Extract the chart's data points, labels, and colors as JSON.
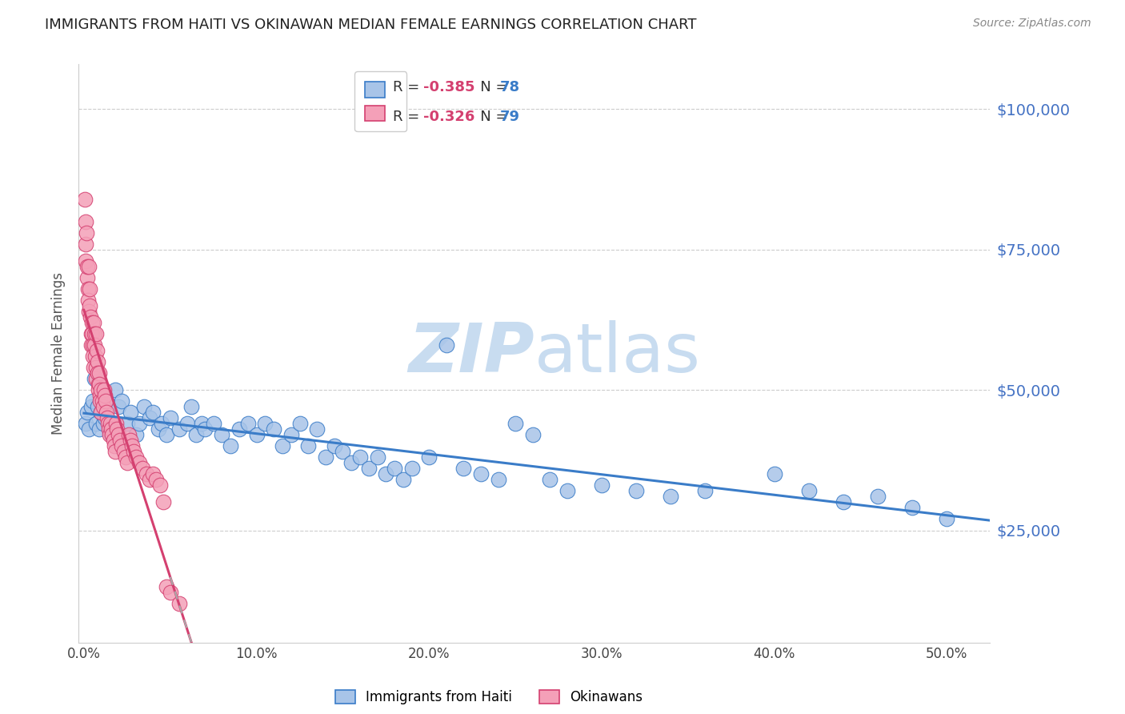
{
  "title": "IMMIGRANTS FROM HAITI VS OKINAWAN MEDIAN FEMALE EARNINGS CORRELATION CHART",
  "source": "Source: ZipAtlas.com",
  "ylabel": "Median Female Earnings",
  "xlabel_ticks": [
    "0.0%",
    "10.0%",
    "20.0%",
    "30.0%",
    "40.0%",
    "50.0%"
  ],
  "xlabel_vals": [
    0.0,
    0.1,
    0.2,
    0.3,
    0.4,
    0.5
  ],
  "ytick_labels": [
    "$25,000",
    "$50,000",
    "$75,000",
    "$100,000"
  ],
  "ytick_vals": [
    25000,
    50000,
    75000,
    100000
  ],
  "ymin": 5000,
  "ymax": 108000,
  "xmin": -0.003,
  "xmax": 0.525,
  "haiti_scatter_color": "#a8c4e8",
  "haiti_line_color": "#3a7cc8",
  "okinawa_scatter_color": "#f4a0b8",
  "okinawa_line_color": "#d44070",
  "watermark_color": "#ddeeff",
  "right_axis_color": "#4472c4",
  "title_fontsize": 13,
  "haiti_R": "-0.385",
  "haiti_N": "78",
  "okinawa_R": "-0.326",
  "okinawa_N": "79",
  "haiti_label": "Immigrants from Haiti",
  "okinawa_label": "Okinawans",
  "haiti_scatter_x": [
    0.001,
    0.002,
    0.003,
    0.004,
    0.005,
    0.006,
    0.007,
    0.008,
    0.009,
    0.01,
    0.011,
    0.012,
    0.013,
    0.015,
    0.016,
    0.018,
    0.02,
    0.022,
    0.025,
    0.027,
    0.03,
    0.032,
    0.035,
    0.038,
    0.04,
    0.043,
    0.045,
    0.048,
    0.05,
    0.055,
    0.06,
    0.062,
    0.065,
    0.068,
    0.07,
    0.075,
    0.08,
    0.085,
    0.09,
    0.095,
    0.1,
    0.105,
    0.11,
    0.115,
    0.12,
    0.125,
    0.13,
    0.135,
    0.14,
    0.145,
    0.15,
    0.155,
    0.16,
    0.165,
    0.17,
    0.175,
    0.18,
    0.185,
    0.19,
    0.2,
    0.21,
    0.22,
    0.23,
    0.24,
    0.25,
    0.26,
    0.27,
    0.28,
    0.3,
    0.32,
    0.34,
    0.36,
    0.4,
    0.42,
    0.44,
    0.46,
    0.48,
    0.5
  ],
  "haiti_scatter_y": [
    44000,
    46000,
    43000,
    47000,
    48000,
    52000,
    44000,
    47000,
    43000,
    46000,
    44000,
    45000,
    48000,
    43000,
    42000,
    50000,
    47000,
    48000,
    44000,
    46000,
    42000,
    44000,
    47000,
    45000,
    46000,
    43000,
    44000,
    42000,
    45000,
    43000,
    44000,
    47000,
    42000,
    44000,
    43000,
    44000,
    42000,
    40000,
    43000,
    44000,
    42000,
    44000,
    43000,
    40000,
    42000,
    44000,
    40000,
    43000,
    38000,
    40000,
    39000,
    37000,
    38000,
    36000,
    38000,
    35000,
    36000,
    34000,
    36000,
    38000,
    58000,
    36000,
    35000,
    34000,
    44000,
    42000,
    34000,
    32000,
    33000,
    32000,
    31000,
    32000,
    35000,
    32000,
    30000,
    31000,
    29000,
    27000
  ],
  "okinawa_scatter_x": [
    0.0005,
    0.0008,
    0.001,
    0.0012,
    0.0015,
    0.0018,
    0.002,
    0.0022,
    0.0025,
    0.0028,
    0.003,
    0.0032,
    0.0035,
    0.0038,
    0.004,
    0.0042,
    0.0045,
    0.0048,
    0.005,
    0.0052,
    0.0055,
    0.0058,
    0.006,
    0.0062,
    0.0065,
    0.0068,
    0.007,
    0.0072,
    0.0075,
    0.0078,
    0.008,
    0.0082,
    0.0085,
    0.0088,
    0.009,
    0.0092,
    0.0095,
    0.0098,
    0.01,
    0.0105,
    0.011,
    0.0115,
    0.012,
    0.0125,
    0.013,
    0.0135,
    0.014,
    0.0145,
    0.015,
    0.0155,
    0.016,
    0.0165,
    0.017,
    0.0175,
    0.018,
    0.0185,
    0.019,
    0.02,
    0.021,
    0.022,
    0.023,
    0.024,
    0.025,
    0.026,
    0.027,
    0.028,
    0.029,
    0.03,
    0.032,
    0.034,
    0.036,
    0.038,
    0.04,
    0.042,
    0.044,
    0.046,
    0.048,
    0.05,
    0.055
  ],
  "okinawa_scatter_y": [
    84000,
    80000,
    76000,
    73000,
    78000,
    70000,
    72000,
    68000,
    66000,
    64000,
    72000,
    68000,
    65000,
    63000,
    60000,
    58000,
    62000,
    60000,
    58000,
    56000,
    54000,
    62000,
    60000,
    58000,
    56000,
    54000,
    52000,
    60000,
    57000,
    55000,
    53000,
    51000,
    50000,
    53000,
    51000,
    49000,
    48000,
    46000,
    50000,
    48000,
    47000,
    50000,
    49000,
    48000,
    46000,
    45000,
    44000,
    43000,
    42000,
    44000,
    43000,
    42000,
    41000,
    40000,
    39000,
    44000,
    43000,
    42000,
    41000,
    40000,
    39000,
    38000,
    37000,
    42000,
    41000,
    40000,
    39000,
    38000,
    37000,
    36000,
    35000,
    34000,
    35000,
    34000,
    33000,
    30000,
    15000,
    14000,
    12000
  ]
}
